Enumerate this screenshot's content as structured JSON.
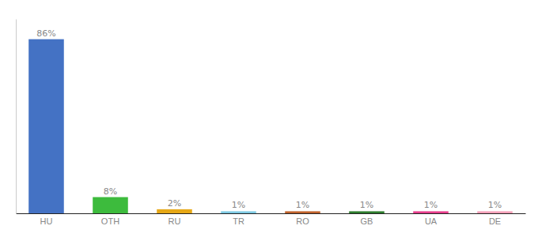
{
  "chart_data": {
    "type": "bar",
    "categories": [
      "HU",
      "OTH",
      "RU",
      "TR",
      "RO",
      "GB",
      "UA",
      "DE"
    ],
    "values": [
      86,
      8,
      2,
      1,
      1,
      1,
      1,
      1
    ],
    "value_labels": [
      "86%",
      "8%",
      "2%",
      "1%",
      "1%",
      "1%",
      "1%",
      "1%"
    ],
    "colors": [
      "#4472c4",
      "#3dbb3d",
      "#e6a817",
      "#7ecae3",
      "#c0622b",
      "#2d7d2d",
      "#e83e8c",
      "#f4a0b8"
    ],
    "ylim": [
      0,
      96
    ],
    "data_labels": true,
    "tick_labels": "x",
    "grid": false
  }
}
